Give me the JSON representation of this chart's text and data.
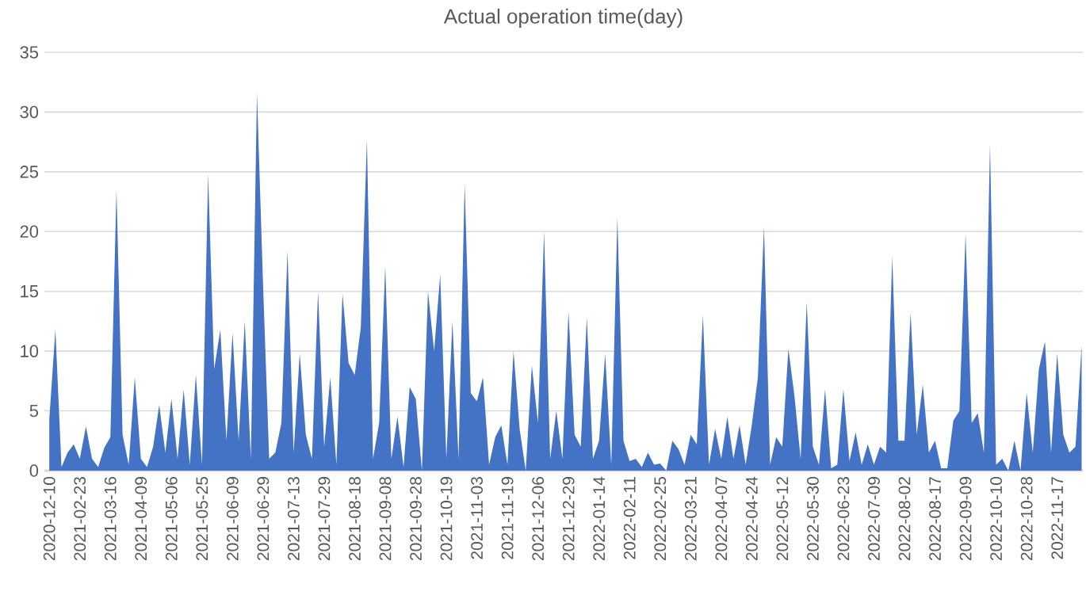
{
  "chart_data": {
    "type": "area",
    "title": "Actual operation time(day)",
    "categories": [
      "2020-12-10",
      null,
      null,
      null,
      null,
      "2021-02-23",
      null,
      null,
      null,
      null,
      "2021-03-16",
      null,
      null,
      null,
      null,
      "2021-04-09",
      null,
      null,
      null,
      null,
      "2021-05-06",
      null,
      null,
      null,
      null,
      "2021-05-25",
      null,
      null,
      null,
      null,
      "2021-06-09",
      null,
      null,
      null,
      null,
      "2021-06-29",
      null,
      null,
      null,
      null,
      "2021-07-13",
      null,
      null,
      null,
      null,
      "2021-07-29",
      null,
      null,
      null,
      null,
      "2021-08-18",
      null,
      null,
      null,
      null,
      "2021-09-08",
      null,
      null,
      null,
      null,
      "2021-09-28",
      null,
      null,
      null,
      null,
      "2021-10-19",
      null,
      null,
      null,
      null,
      "2021-11-03",
      null,
      null,
      null,
      null,
      "2021-11-19",
      null,
      null,
      null,
      null,
      "2021-12-06",
      null,
      null,
      null,
      null,
      "2021-12-29",
      null,
      null,
      null,
      null,
      "2022-01-14",
      null,
      null,
      null,
      null,
      "2022-02-11",
      null,
      null,
      null,
      null,
      "2022-02-25",
      null,
      null,
      null,
      null,
      "2022-03-21",
      null,
      null,
      null,
      null,
      "2022-04-07",
      null,
      null,
      null,
      null,
      "2022-04-24",
      null,
      null,
      null,
      null,
      "2022-05-12",
      null,
      null,
      null,
      null,
      "2022-05-30",
      null,
      null,
      null,
      null,
      "2022-06-23",
      null,
      null,
      null,
      null,
      "2022-07-09",
      null,
      null,
      null,
      null,
      "2022-08-02",
      null,
      null,
      null,
      null,
      "2022-08-17",
      null,
      null,
      null,
      null,
      "2022-09-09",
      null,
      null,
      null,
      null,
      "2022-10-10",
      null,
      null,
      null,
      null,
      "2022-10-28",
      null,
      null,
      null,
      null,
      "2022-11-17",
      null,
      null,
      null,
      null
    ],
    "values": [
      4.3,
      11.8,
      0.3,
      1.5,
      2.2,
      1.0,
      3.7,
      1.0,
      0.3,
      1.9,
      2.8,
      23.5,
      3.0,
      0.5,
      7.8,
      1.0,
      0.3,
      2.0,
      5.5,
      1.5,
      6.0,
      1.0,
      6.8,
      0.5,
      8.0,
      0.5,
      24.8,
      8.5,
      11.8,
      2.5,
      11.5,
      2.5,
      12.5,
      1.0,
      31.6,
      15.5,
      1.0,
      1.5,
      4.0,
      18.4,
      1.5,
      9.8,
      3.0,
      1.0,
      15.0,
      2.0,
      7.8,
      0.5,
      14.8,
      9.0,
      8.0,
      12.0,
      27.7,
      1.0,
      4.0,
      17.1,
      1.0,
      4.5,
      0.3,
      7.0,
      6.0,
      0.0,
      15.0,
      10.0,
      16.4,
      1.0,
      12.5,
      1.0,
      24.0,
      6.5,
      5.8,
      7.8,
      0.5,
      2.8,
      3.8,
      0.5,
      10.0,
      3.5,
      0.0,
      8.8,
      4.0,
      20.0,
      1.0,
      5.0,
      1.0,
      13.3,
      3.0,
      2.0,
      12.8,
      1.0,
      2.5,
      9.8,
      0.5,
      21.2,
      2.5,
      0.8,
      1.0,
      0.3,
      1.5,
      0.5,
      0.6,
      0.0,
      2.5,
      1.8,
      0.5,
      3.0,
      2.2,
      13.0,
      0.5,
      3.5,
      1.0,
      4.5,
      1.0,
      3.8,
      0.5,
      3.8,
      7.8,
      20.4,
      0.5,
      2.8,
      2.0,
      10.2,
      6.2,
      1.0,
      14.1,
      2.0,
      0.5,
      6.8,
      0.2,
      0.5,
      6.8,
      0.8,
      3.2,
      0.5,
      2.2,
      0.5,
      2.0,
      1.5,
      17.9,
      2.5,
      2.5,
      13.2,
      3.0,
      7.2,
      1.5,
      2.5,
      0.2,
      0.2,
      4.2,
      5.0,
      19.8,
      4.0,
      4.8,
      1.5,
      27.3,
      0.5,
      1.0,
      0.0,
      2.5,
      0.0,
      6.5,
      1.5,
      8.5,
      10.8,
      1.5,
      9.8,
      3.0,
      1.5,
      2.0,
      10.5
    ],
    "color": "#4472c4",
    "ylim": [
      0,
      35
    ],
    "yticks": [
      0,
      5,
      10,
      15,
      20,
      25,
      30,
      35
    ],
    "grid": "y"
  }
}
